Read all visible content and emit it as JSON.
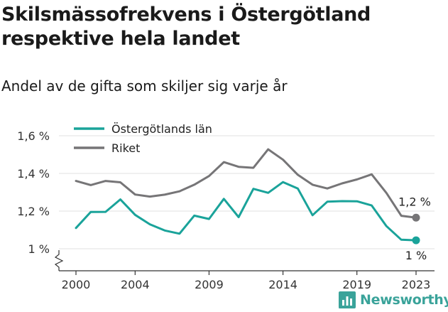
{
  "chart_data": {
    "type": "line",
    "title": "Skilsmässofrekvens i Östergötland respektive hela landet",
    "subtitle": "Andel av de gifta som skiljer sig varje år",
    "x": [
      2000,
      2001,
      2002,
      2003,
      2004,
      2005,
      2006,
      2007,
      2008,
      2009,
      2010,
      2011,
      2012,
      2013,
      2014,
      2015,
      2016,
      2017,
      2018,
      2019,
      2020,
      2021,
      2022,
      2023
    ],
    "x_ticks": [
      "2000",
      "2004",
      "2009",
      "2014",
      "2019",
      "2023"
    ],
    "y_ticks": [
      "1 %",
      "1,2 %",
      "1,4 %",
      "1,6 %"
    ],
    "ylim": [
      1.0,
      1.6
    ],
    "legend_position": "top-left",
    "series": [
      {
        "name": "Östergötlands län",
        "color": "#1aa39a",
        "values": [
          1.11,
          1.195,
          1.196,
          1.262,
          1.18,
          1.13,
          1.097,
          1.08,
          1.176,
          1.158,
          1.265,
          1.168,
          1.318,
          1.297,
          1.354,
          1.32,
          1.178,
          1.25,
          1.253,
          1.252,
          1.23,
          1.12,
          1.048,
          1.045
        ],
        "end_label": "1 %"
      },
      {
        "name": "Riket",
        "color": "#767577",
        "values": [
          1.36,
          1.338,
          1.36,
          1.353,
          1.288,
          1.277,
          1.287,
          1.305,
          1.34,
          1.386,
          1.46,
          1.435,
          1.43,
          1.528,
          1.473,
          1.393,
          1.34,
          1.32,
          1.347,
          1.368,
          1.395,
          1.296,
          1.175,
          1.165
        ],
        "end_label": "1,2 %"
      }
    ]
  },
  "branding": {
    "name": "Newsworthy",
    "color": "#3aa39a",
    "icon": "bar-chart-logo-icon"
  }
}
